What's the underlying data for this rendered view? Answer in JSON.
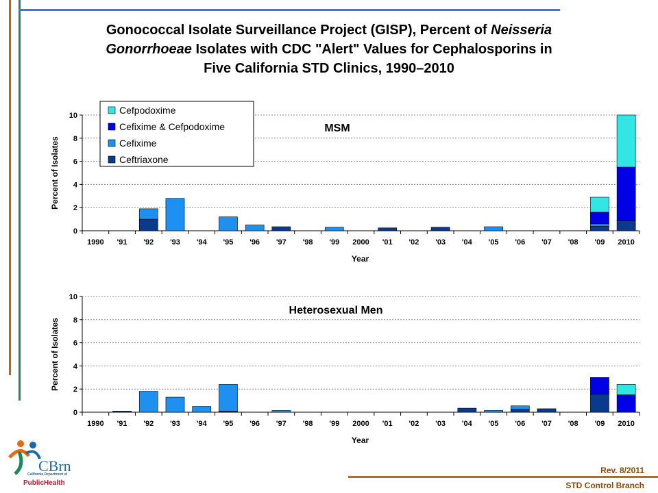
{
  "page": {
    "title_parts": [
      {
        "text": "Gonococcal Isolate Surveillance Project (GISP), Percent of ",
        "italic": false
      },
      {
        "text": "Neisseria",
        "italic": true
      },
      {
        "text": "",
        "br": true
      },
      {
        "text": "Gonorrhoeae",
        "italic": true
      },
      {
        "text": " Isolates with CDC \"Alert\" Values for Cephalosporins in",
        "italic": false
      },
      {
        "text": "",
        "br": true
      },
      {
        "text": "Five California STD Clinics, 1990–2010",
        "italic": false
      }
    ],
    "revision": "Rev.  8/2011",
    "footer": "STD Control Branch",
    "logo_text": "CBrn",
    "logo_sub": "California Department of",
    "logo_org": "PublicHealth"
  },
  "colors": {
    "Cefpodoxime": "#33e6e6",
    "Cefixime & Cefpodoxime": "#0000e6",
    "Cefixime": "#1e90f0",
    "Ceftriaxone": "#0a3a8c",
    "accent_orange": "#b86a14",
    "accent_green": "#1a8a5a",
    "accent_blue": "#2f7fd6"
  },
  "chart_data": [
    {
      "type": "bar",
      "stacked": true,
      "title": "MSM",
      "xlabel": "Year",
      "ylabel": "Percent of Isolates",
      "ylim": [
        0,
        10
      ],
      "yticks": [
        0,
        2,
        4,
        6,
        8,
        10
      ],
      "grid": true,
      "legend": "top-left",
      "categories": [
        "1990",
        "'91",
        "'92",
        "'93",
        "'94",
        "'95",
        "'96",
        "'97",
        "'98",
        "'99",
        "2000",
        "'01",
        "'02",
        "'03",
        "'04",
        "'05",
        "'06",
        "'07",
        "'08",
        "'09",
        "2010"
      ],
      "series": [
        {
          "name": "Ceftriaxone",
          "values": [
            0,
            0,
            1.0,
            0,
            0,
            0,
            0,
            0.35,
            0,
            0,
            0,
            0.25,
            0,
            0.3,
            0,
            0,
            0,
            0,
            0,
            0.4,
            0.85
          ]
        },
        {
          "name": "Cefixime",
          "values": [
            0,
            0,
            0.9,
            2.8,
            0,
            1.2,
            0.5,
            0,
            0,
            0.3,
            0,
            0,
            0,
            0,
            0,
            0.35,
            0,
            0,
            0,
            0.2,
            0
          ]
        },
        {
          "name": "Cefixime & Cefpodoxime",
          "values": [
            0,
            0,
            0,
            0,
            0,
            0,
            0,
            0,
            0,
            0,
            0,
            0,
            0,
            0,
            0,
            0,
            0,
            0,
            0,
            1.0,
            4.65
          ]
        },
        {
          "name": "Cefpodoxime",
          "values": [
            0,
            0,
            0,
            0,
            0,
            0,
            0,
            0,
            0,
            0,
            0,
            0,
            0,
            0,
            0,
            0,
            0,
            0,
            0,
            1.3,
            4.5
          ]
        }
      ]
    },
    {
      "type": "bar",
      "stacked": true,
      "title": "Heterosexual Men",
      "xlabel": "Year",
      "ylabel": "Percent of Isolates",
      "ylim": [
        0,
        10
      ],
      "yticks": [
        0,
        2,
        4,
        6,
        8,
        10
      ],
      "grid": true,
      "categories": [
        "1990",
        "'91",
        "'92",
        "'93",
        "'94",
        "'95",
        "'96",
        "'97",
        "'98",
        "'99",
        "2000",
        "'01",
        "'02",
        "'03",
        "'04",
        "'05",
        "'06",
        "'07",
        "'08",
        "'09",
        "2010"
      ],
      "series": [
        {
          "name": "Ceftriaxone",
          "values": [
            0,
            0.1,
            0,
            0,
            0,
            0.1,
            0,
            0,
            0,
            0,
            0,
            0,
            0,
            0,
            0.35,
            0,
            0.25,
            0.3,
            0,
            1.55,
            0
          ]
        },
        {
          "name": "Cefixime",
          "values": [
            0,
            0,
            1.8,
            1.3,
            0.5,
            2.3,
            0,
            0.15,
            0,
            0,
            0,
            0,
            0,
            0,
            0,
            0.15,
            0.3,
            0,
            0,
            0,
            0
          ]
        },
        {
          "name": "Cefixime & Cefpodoxime",
          "values": [
            0,
            0,
            0,
            0,
            0,
            0,
            0,
            0,
            0,
            0,
            0,
            0,
            0,
            0,
            0,
            0,
            0,
            0,
            0,
            1.45,
            1.5
          ]
        },
        {
          "name": "Cefpodoxime",
          "values": [
            0,
            0,
            0,
            0,
            0,
            0,
            0,
            0,
            0,
            0,
            0,
            0,
            0,
            0,
            0,
            0,
            0,
            0,
            0,
            0,
            0.9
          ]
        }
      ]
    }
  ]
}
